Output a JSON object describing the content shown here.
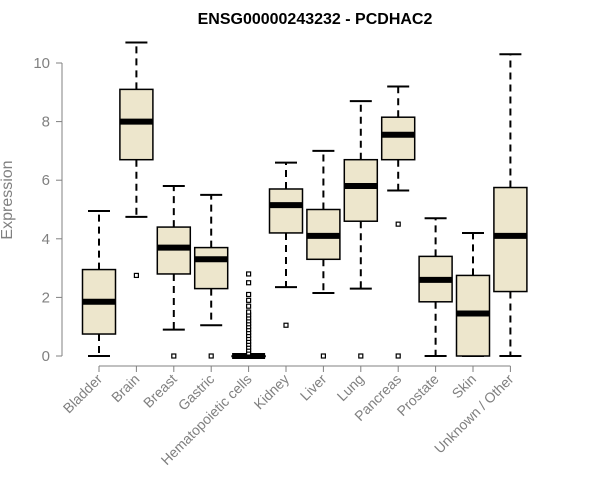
{
  "chart_data": {
    "type": "boxplot",
    "title": "ENSG00000243232 - PCDHAC2",
    "xlabel": "",
    "ylabel": "Expression",
    "ylim": [
      0,
      10.8
    ],
    "yticks": [
      0,
      2,
      4,
      6,
      8,
      10
    ],
    "grid": false,
    "box_fill": "#ede6cc",
    "line_color": "#000000",
    "axis_color": "#808080",
    "categories": [
      "Bladder",
      "Brain",
      "Breast",
      "Gastric",
      "Hematopoietic cells",
      "Kidney",
      "Liver",
      "Lung",
      "Pancreas",
      "Prostate",
      "Skin",
      "Unknown / Other"
    ],
    "boxes": [
      {
        "name": "Bladder",
        "whisker_low": 0,
        "q1": 0.75,
        "median": 1.85,
        "q3": 2.95,
        "whisker_high": 4.95,
        "outliers": []
      },
      {
        "name": "Brain",
        "whisker_low": 4.75,
        "q1": 6.7,
        "median": 8.0,
        "q3": 9.1,
        "whisker_high": 10.7,
        "outliers": [
          2.75
        ]
      },
      {
        "name": "Breast",
        "whisker_low": 0.9,
        "q1": 2.8,
        "median": 3.7,
        "q3": 4.4,
        "whisker_high": 5.8,
        "outliers": [
          0
        ]
      },
      {
        "name": "Gastric",
        "whisker_low": 1.05,
        "q1": 2.3,
        "median": 3.3,
        "q3": 3.7,
        "whisker_high": 5.5,
        "outliers": [
          0
        ]
      },
      {
        "name": "Hematopoietic cells",
        "whisker_low": 0,
        "q1": 0,
        "median": 0,
        "q3": 0,
        "whisker_high": 0,
        "outliers": [
          0.1,
          0.2,
          0.3,
          0.4,
          0.5,
          0.6,
          0.7,
          0.8,
          0.9,
          1.0,
          1.1,
          1.2,
          1.3,
          1.4,
          1.5,
          1.7,
          1.9,
          2.1,
          2.5,
          2.8
        ]
      },
      {
        "name": "Kidney",
        "whisker_low": 2.35,
        "q1": 4.2,
        "median": 5.15,
        "q3": 5.7,
        "whisker_high": 6.6,
        "outliers": [
          1.05
        ]
      },
      {
        "name": "Liver",
        "whisker_low": 2.15,
        "q1": 3.3,
        "median": 4.1,
        "q3": 5.0,
        "whisker_high": 7.0,
        "outliers": [
          0
        ]
      },
      {
        "name": "Lung",
        "whisker_low": 2.3,
        "q1": 4.6,
        "median": 5.8,
        "q3": 6.7,
        "whisker_high": 8.7,
        "outliers": [
          0
        ]
      },
      {
        "name": "Pancreas",
        "whisker_low": 5.65,
        "q1": 6.7,
        "median": 7.55,
        "q3": 8.15,
        "whisker_high": 9.2,
        "outliers": [
          4.5,
          0
        ]
      },
      {
        "name": "Prostate",
        "whisker_low": 0,
        "q1": 1.85,
        "median": 2.6,
        "q3": 3.4,
        "whisker_high": 4.7,
        "outliers": []
      },
      {
        "name": "Skin",
        "whisker_low": 0,
        "q1": 0,
        "median": 1.45,
        "q3": 2.75,
        "whisker_high": 4.2,
        "outliers": []
      },
      {
        "name": "Unknown / Other",
        "whisker_low": 0,
        "q1": 2.2,
        "median": 4.1,
        "q3": 5.75,
        "whisker_high": 10.3,
        "outliers": []
      }
    ]
  }
}
